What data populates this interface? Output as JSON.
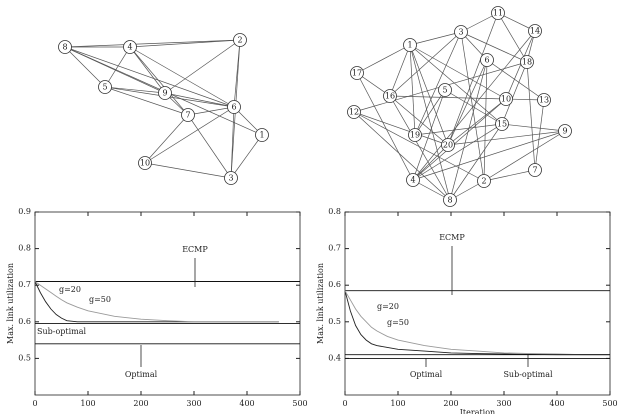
{
  "graphs": [
    {
      "nodes": [
        "1",
        "2",
        "3",
        "4",
        "5",
        "6",
        "7",
        "8",
        "9",
        "10"
      ]
    },
    {
      "nodes": [
        "1",
        "2",
        "3",
        "4",
        "5",
        "6",
        "7",
        "8",
        "9",
        "10",
        "11",
        "12",
        "13",
        "14",
        "15",
        "16",
        "17",
        "18",
        "19",
        "20"
      ]
    }
  ],
  "chart_data": [
    {
      "type": "line",
      "ylabel": "Max. link utilization",
      "xlim": [
        0,
        500
      ],
      "xticks": [
        0,
        100,
        200,
        300,
        400,
        500
      ],
      "ylim": [
        0.4,
        0.9
      ],
      "yticks": [
        0.5,
        0.6,
        0.7,
        0.8,
        0.9
      ],
      "annotations": [
        "ECMP",
        "g=20",
        "g=50",
        "Sub-optimal",
        "Optimal"
      ],
      "series": [
        {
          "color": "#111111",
          "x": [
            0,
            500
          ],
          "values": [
            0.71,
            0.71
          ]
        },
        {
          "color": "#222222",
          "x": [
            0,
            10,
            20,
            30,
            40,
            50,
            60,
            80,
            100,
            150,
            200,
            250,
            300,
            350,
            400,
            460
          ],
          "values": [
            0.71,
            0.68,
            0.655,
            0.635,
            0.62,
            0.61,
            0.603,
            0.6,
            0.6,
            0.6,
            0.6,
            0.6,
            0.6,
            0.6,
            0.6,
            0.6
          ]
        },
        {
          "color": "#9a9a9a",
          "x": [
            0,
            10,
            20,
            30,
            40,
            50,
            60,
            80,
            100,
            150,
            200,
            250,
            300,
            350,
            400,
            460
          ],
          "values": [
            0.71,
            0.7,
            0.69,
            0.68,
            0.67,
            0.66,
            0.652,
            0.64,
            0.63,
            0.615,
            0.607,
            0.603,
            0.6,
            0.6,
            0.6,
            0.6
          ]
        },
        {
          "color": "#111111",
          "x": [
            0,
            500
          ],
          "values": [
            0.595,
            0.595
          ]
        },
        {
          "color": "#111111",
          "x": [
            0,
            500
          ],
          "values": [
            0.54,
            0.54
          ]
        }
      ]
    },
    {
      "type": "line",
      "ylabel": "Max. link utilization",
      "xlabel": "Iteration",
      "xlim": [
        0,
        500
      ],
      "xticks": [
        0,
        100,
        200,
        300,
        400,
        500
      ],
      "ylim": [
        0.3,
        0.8
      ],
      "yticks": [
        0.4,
        0.5,
        0.6,
        0.7,
        0.8
      ],
      "annotations": [
        "ECMP",
        "g=20",
        "g=50",
        "Optimal",
        "Sub-optimal"
      ],
      "series": [
        {
          "color": "#111111",
          "x": [
            0,
            500
          ],
          "values": [
            0.585,
            0.585
          ]
        },
        {
          "color": "#222222",
          "x": [
            0,
            10,
            20,
            30,
            40,
            50,
            60,
            80,
            100,
            150,
            200,
            250,
            300,
            350,
            400,
            450,
            500
          ],
          "values": [
            0.585,
            0.53,
            0.49,
            0.465,
            0.45,
            0.44,
            0.435,
            0.43,
            0.425,
            0.42,
            0.415,
            0.413,
            0.412,
            0.411,
            0.41,
            0.41,
            0.41
          ]
        },
        {
          "color": "#9a9a9a",
          "x": [
            0,
            10,
            20,
            30,
            40,
            50,
            60,
            80,
            100,
            150,
            200,
            250,
            300,
            350,
            400,
            450,
            500
          ],
          "values": [
            0.585,
            0.56,
            0.535,
            0.515,
            0.5,
            0.485,
            0.475,
            0.46,
            0.45,
            0.435,
            0.425,
            0.42,
            0.415,
            0.413,
            0.412,
            0.41,
            0.41
          ]
        },
        {
          "color": "#111111",
          "x": [
            0,
            500
          ],
          "values": [
            0.4,
            0.4
          ]
        },
        {
          "color": "#111111",
          "x": [
            0,
            500
          ],
          "values": [
            0.41,
            0.41
          ]
        }
      ]
    }
  ]
}
